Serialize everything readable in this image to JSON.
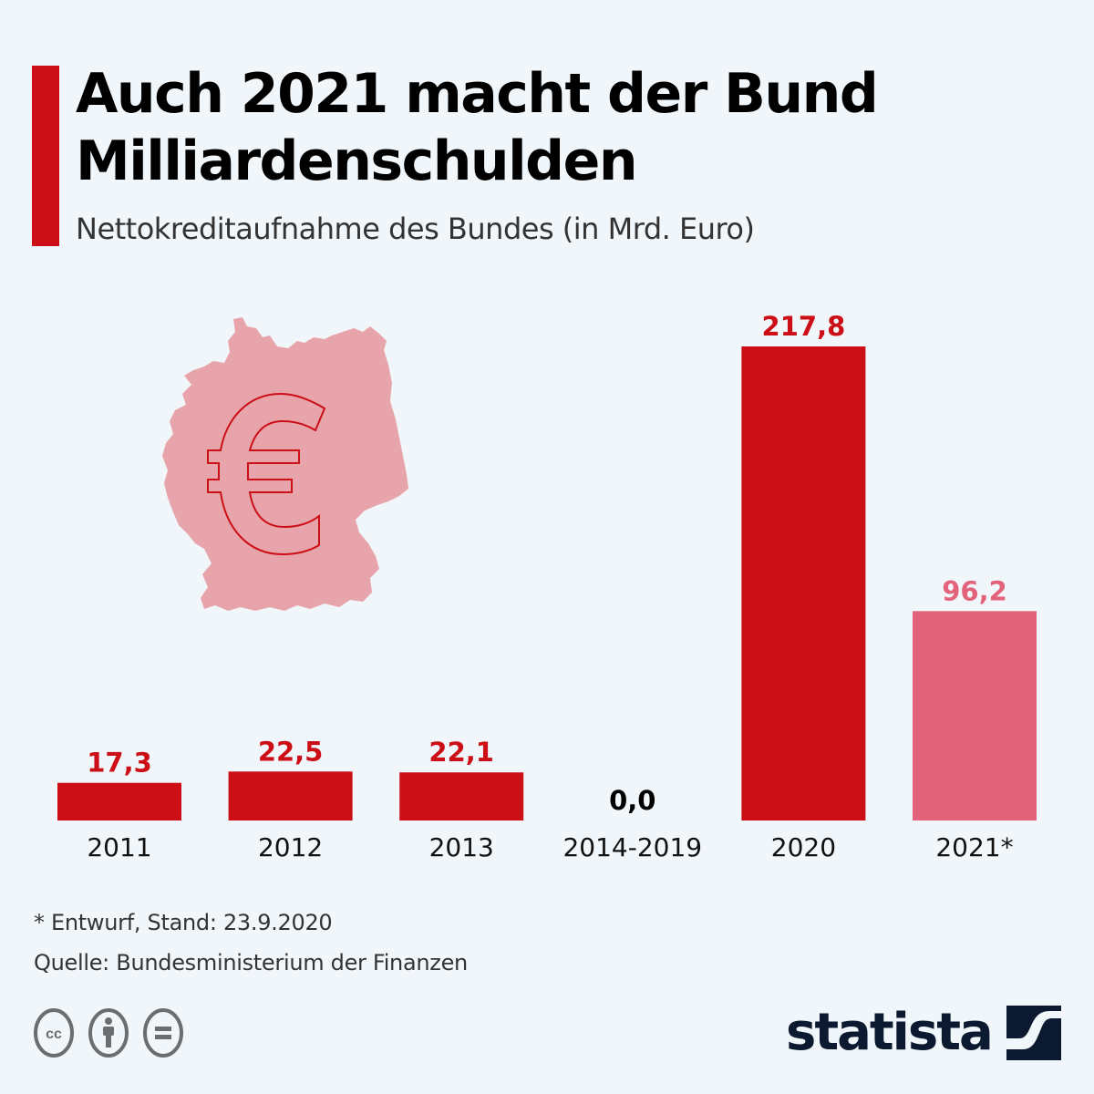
{
  "header": {
    "title": "Auch 2021 macht der Bund Milliardenschulden",
    "subtitle": "Nettokreditaufnahme des Bundes (in Mrd. Euro)"
  },
  "colors": {
    "accent": "#cc0e17",
    "bar_primary": "#cc0e17",
    "bar_forecast": "#e3637d",
    "zero_label": "#000000",
    "map_fill": "#e8a4ab",
    "brand_dark": "#0b1a30"
  },
  "chart_data": {
    "type": "bar",
    "title": "Auch 2021 macht der Bund Milliardenschulden",
    "subtitle": "Nettokreditaufnahme des Bundes (in Mrd. Euro)",
    "xlabel": "",
    "ylabel": "Mrd. Euro",
    "categories": [
      "2011",
      "2012",
      "2013",
      "2014-2019",
      "2020",
      "2021*"
    ],
    "values": [
      17.3,
      22.5,
      22.1,
      0.0,
      217.8,
      96.2
    ],
    "value_labels": [
      "17,3",
      "22,5",
      "22,1",
      "0,0",
      "217,8",
      "96,2"
    ],
    "forecast": [
      false,
      false,
      false,
      false,
      false,
      true
    ],
    "ylim": [
      0,
      217.8
    ],
    "grid": false,
    "legend": "none"
  },
  "illustration": {
    "map": "germany-map-icon",
    "symbol": "euro-icon"
  },
  "footer": {
    "note": "* Entwurf, Stand: 23.9.2020",
    "source": "Quelle: Bundesministerium der Finanzen",
    "license_icons": [
      "cc-icon",
      "attribution-icon",
      "no-derivatives-icon"
    ],
    "brand": "statista"
  }
}
